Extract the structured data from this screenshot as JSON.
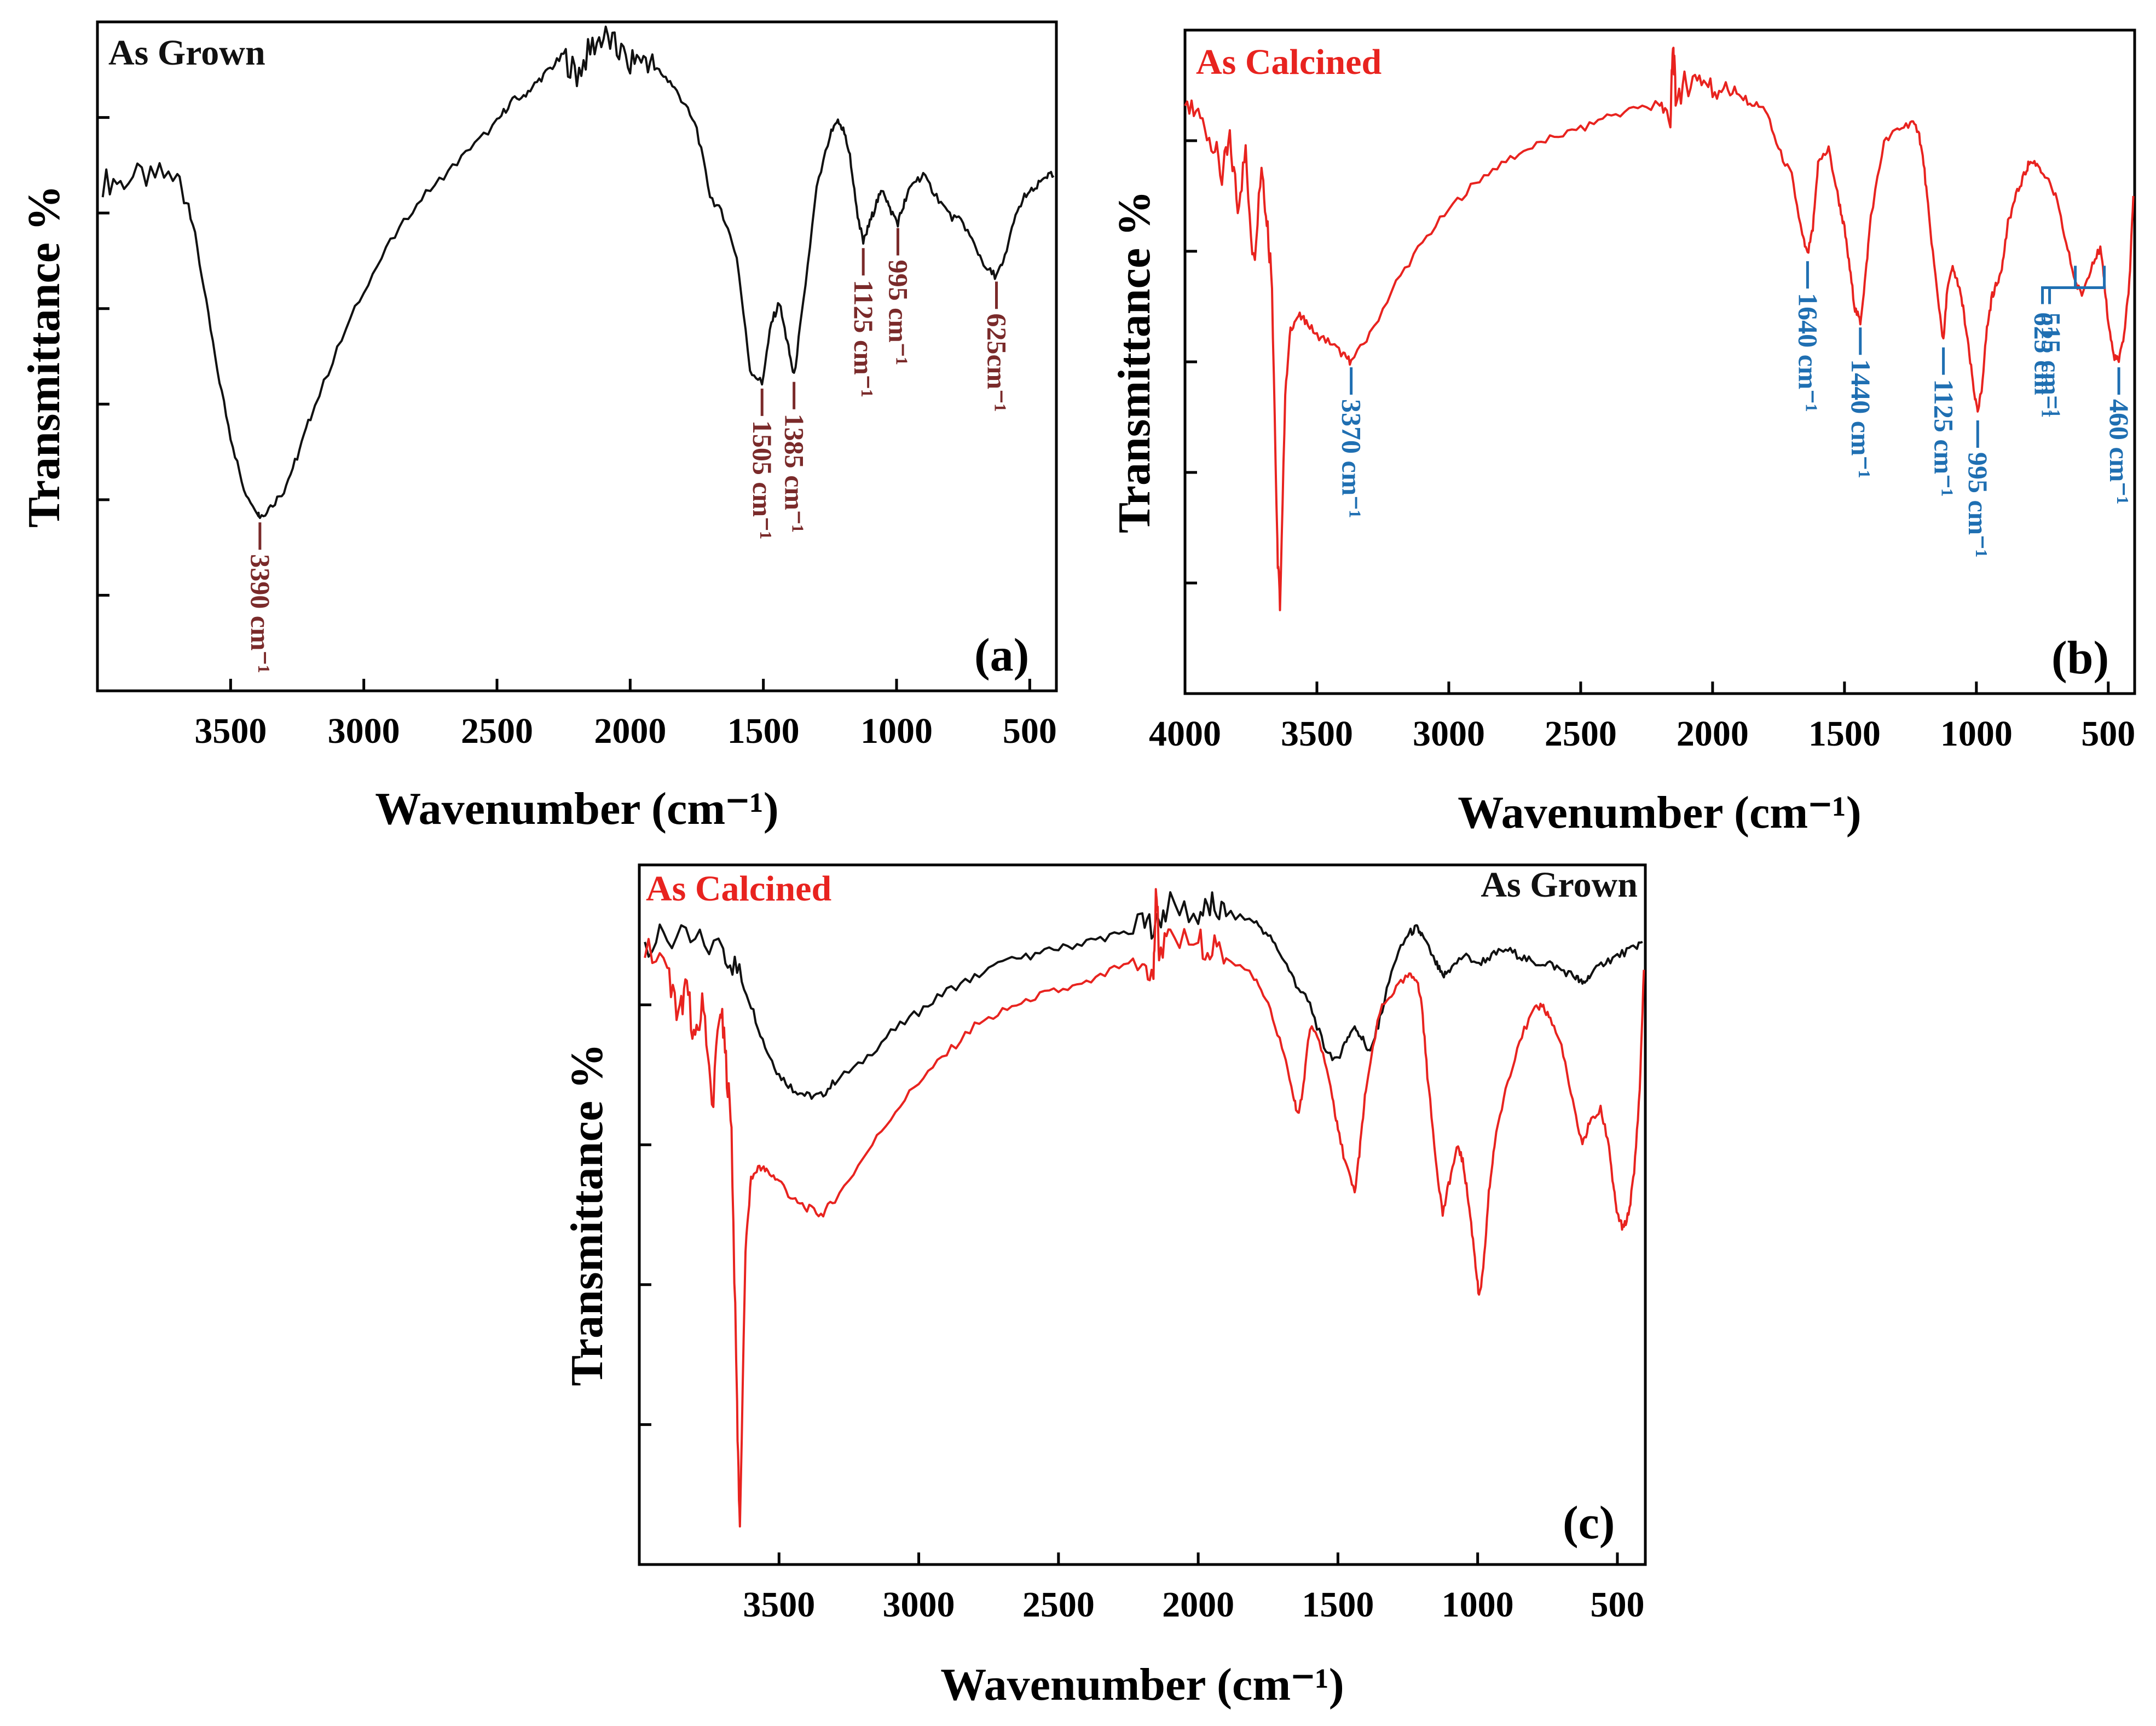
{
  "colors": {
    "as_grown": "#111111",
    "as_calcined": "#e8231f",
    "peak_label_a": "#7a2a2a",
    "peak_label_b": "#1f6fb2"
  },
  "chart_data": [
    {
      "id": "a",
      "type": "line",
      "panel_label": "(a)",
      "corner_label": "As Grown",
      "xlabel": "Wavenumber (cm⁻¹)",
      "ylabel": "Transmittance %",
      "xlim": [
        4000,
        400
      ],
      "ylim": [
        0,
        100
      ],
      "xticks": [
        3500,
        3000,
        2500,
        2000,
        1500,
        1000,
        500
      ],
      "y_tick_count": 6,
      "series": [
        {
          "name": "As Grown",
          "color_key": "as_grown",
          "x": [
            3980,
            3900,
            3800,
            3700,
            3650,
            3600,
            3550,
            3500,
            3450,
            3400,
            3390,
            3350,
            3300,
            3250,
            3200,
            3100,
            3000,
            2900,
            2800,
            2700,
            2600,
            2500,
            2450,
            2400,
            2350,
            2300,
            2250,
            2200,
            2150,
            2100,
            2050,
            2000,
            1950,
            1900,
            1850,
            1800,
            1750,
            1700,
            1650,
            1600,
            1550,
            1505,
            1470,
            1440,
            1410,
            1385,
            1350,
            1300,
            1250,
            1220,
            1200,
            1175,
            1150,
            1125,
            1100,
            1075,
            1050,
            1025,
            995,
            970,
            940,
            900,
            850,
            800,
            750,
            700,
            660,
            625,
            600,
            560,
            520,
            480,
            440,
            410
          ],
          "y": [
            76,
            76.5,
            77,
            77,
            72,
            60,
            48,
            38,
            30,
            27,
            26,
            27.5,
            30,
            35,
            41,
            51,
            60,
            67,
            73,
            77,
            81,
            85,
            88,
            89,
            91,
            93,
            95,
            92,
            96,
            98,
            96,
            94,
            95,
            93,
            91,
            88,
            84,
            74,
            71,
            65,
            48,
            46,
            55,
            58,
            52,
            47,
            58,
            75,
            83,
            85,
            84,
            80,
            72,
            67,
            70,
            73,
            75,
            72,
            70,
            73,
            76,
            77,
            74,
            71,
            70,
            66,
            63,
            62,
            64,
            70,
            74,
            75,
            77,
            77
          ]
        }
      ],
      "peaks": [
        {
          "text": "3390 cm⁻¹",
          "x": 3390,
          "orient": "down"
        },
        {
          "text": "1505 cm⁻¹",
          "x": 1505,
          "orient": "down"
        },
        {
          "text": "1385 cm⁻¹",
          "x": 1385,
          "orient": "down"
        },
        {
          "text": "1125 cm⁻¹",
          "x": 1125,
          "orient": "down"
        },
        {
          "text": "995 cm⁻¹",
          "x": 995,
          "orient": "down"
        },
        {
          "text": "625cm⁻¹",
          "x": 625,
          "orient": "down"
        }
      ]
    },
    {
      "id": "b",
      "type": "line",
      "panel_label": "(b)",
      "corner_label": "As Calcined",
      "xlabel": "Wavenumber (cm⁻¹)",
      "ylabel": "Transmittance %",
      "xlim": [
        4000,
        400
      ],
      "ylim": [
        0,
        100
      ],
      "xticks": [
        4000,
        3500,
        3000,
        2500,
        2000,
        1500,
        1000,
        500
      ],
      "y_tick_count": 5,
      "series": [
        {
          "name": "As Calcined",
          "color_key": "as_calcined",
          "x": [
            4000,
            3950,
            3900,
            3860,
            3830,
            3800,
            3770,
            3740,
            3710,
            3690,
            3670,
            3650,
            3640,
            3620,
            3600,
            3570,
            3540,
            3500,
            3450,
            3400,
            3370,
            3300,
            3200,
            3100,
            3000,
            2900,
            2800,
            2700,
            2600,
            2500,
            2400,
            2300,
            2200,
            2160,
            2150,
            2140,
            2100,
            2050,
            2000,
            1950,
            1900,
            1850,
            1800,
            1750,
            1700,
            1660,
            1640,
            1620,
            1600,
            1560,
            1520,
            1500,
            1480,
            1460,
            1440,
            1420,
            1400,
            1350,
            1300,
            1250,
            1220,
            1200,
            1180,
            1150,
            1125,
            1110,
            1090,
            1070,
            1050,
            1030,
            1010,
            995,
            980,
            960,
            940,
            920,
            900,
            880,
            850,
            820,
            800,
            770,
            740,
            700,
            660,
            625,
            600,
            560,
            530,
            515,
            500,
            480,
            460,
            440,
            420,
            405
          ],
          "y": [
            88,
            87,
            84,
            78,
            83,
            74,
            81,
            65,
            80,
            72,
            62,
            22,
            13,
            45,
            55,
            57,
            56,
            54,
            53,
            51,
            50,
            54,
            62,
            68,
            73,
            77,
            80,
            82,
            84,
            85,
            87,
            88,
            89,
            86,
            98,
            90,
            92,
            93,
            91,
            92,
            90,
            89,
            88,
            82,
            78,
            69,
            66,
            70,
            80,
            82,
            74,
            70,
            64,
            58,
            56,
            63,
            72,
            83,
            85,
            86,
            85,
            80,
            72,
            61,
            53,
            61,
            64,
            62,
            58,
            52,
            46,
            42,
            46,
            55,
            60,
            62,
            65,
            71,
            75,
            78,
            80,
            80,
            78,
            75,
            68,
            62,
            60,
            65,
            67,
            62,
            56,
            51,
            50,
            54,
            62,
            75
          ]
        }
      ],
      "peaks": [
        {
          "text": "3370 cm⁻¹",
          "x": 3370,
          "orient": "down"
        },
        {
          "text": "1640 cm⁻¹",
          "x": 1640,
          "orient": "down"
        },
        {
          "text": "1440 cm⁻¹",
          "x": 1440,
          "orient": "down"
        },
        {
          "text": "1125 cm⁻¹",
          "x": 1125,
          "orient": "down"
        },
        {
          "text": "995 cm⁻¹",
          "x": 995,
          "orient": "down"
        },
        {
          "text": "625 cm⁻¹",
          "x": 625,
          "orient": "bracket"
        },
        {
          "text": "515 cm⁻¹",
          "x": 515,
          "orient": "bracket"
        },
        {
          "text": "460 cm⁻¹",
          "x": 460,
          "orient": "down"
        }
      ]
    },
    {
      "id": "c",
      "type": "line",
      "panel_label": "(c)",
      "corner_label_left": "As Calcined",
      "corner_label_right": "As Grown",
      "xlabel": "Wavenumber (cm⁻¹)",
      "ylabel": "Transmittance %",
      "xlim": [
        4000,
        400
      ],
      "ylim": [
        0,
        100
      ],
      "xticks": [
        3500,
        3000,
        2500,
        2000,
        1500,
        1000,
        500
      ],
      "y_tick_count": 4,
      "series": [
        {
          "name": "As Grown",
          "color_key": "as_grown",
          "x": [
            3980,
            3900,
            3800,
            3700,
            3650,
            3600,
            3550,
            3500,
            3450,
            3400,
            3350,
            3300,
            3200,
            3100,
            3000,
            2900,
            2800,
            2700,
            2600,
            2500,
            2400,
            2300,
            2200,
            2150,
            2100,
            2000,
            1950,
            1900,
            1800,
            1750,
            1700,
            1650,
            1600,
            1550,
            1505,
            1470,
            1440,
            1410,
            1385,
            1350,
            1300,
            1250,
            1220,
            1200,
            1150,
            1125,
            1100,
            1050,
            995,
            950,
            900,
            850,
            800,
            750,
            700,
            650,
            625,
            600,
            550,
            500,
            450,
            410
          ],
          "y": [
            89,
            89.5,
            89,
            88,
            85,
            80,
            74,
            70,
            68,
            67,
            67,
            69,
            72,
            76,
            79,
            82,
            84,
            86,
            87,
            88,
            89,
            90,
            91,
            92,
            94,
            93,
            94,
            93,
            92,
            90,
            87,
            83,
            80,
            74,
            72,
            75,
            77,
            75,
            73,
            78,
            86,
            90,
            91,
            90,
            86,
            84,
            85,
            87,
            86,
            87,
            88,
            87,
            86,
            86,
            85,
            84,
            83,
            84,
            86,
            87,
            88,
            89
          ]
        },
        {
          "name": "As Calcined",
          "color_key": "as_calcined",
          "x": [
            3980,
            3900,
            3860,
            3830,
            3800,
            3770,
            3740,
            3710,
            3690,
            3670,
            3650,
            3640,
            3620,
            3600,
            3570,
            3540,
            3500,
            3450,
            3400,
            3350,
            3300,
            3200,
            3100,
            3000,
            2900,
            2800,
            2700,
            2600,
            2500,
            2400,
            2300,
            2200,
            2160,
            2150,
            2140,
            2100,
            2000,
            1950,
            1900,
            1800,
            1750,
            1700,
            1660,
            1640,
            1620,
            1600,
            1560,
            1520,
            1500,
            1470,
            1440,
            1420,
            1400,
            1350,
            1300,
            1250,
            1220,
            1200,
            1180,
            1150,
            1125,
            1100,
            1070,
            1050,
            1030,
            1010,
            995,
            980,
            960,
            940,
            900,
            850,
            800,
            770,
            740,
            700,
            660,
            625,
            600,
            560,
            530,
            515,
            500,
            480,
            460,
            440,
            420,
            405
          ],
          "y": [
            88,
            85,
            78,
            83,
            74,
            81,
            65,
            80,
            72,
            62,
            22,
            5,
            45,
            55,
            57,
            56,
            55,
            52,
            51,
            50,
            52,
            58,
            64,
            69,
            73,
            77,
            79,
            81,
            82,
            83,
            85,
            86,
            84,
            97,
            88,
            89,
            89,
            88,
            87,
            84,
            80,
            74,
            67,
            64,
            70,
            77,
            74,
            67,
            62,
            57,
            53,
            60,
            68,
            79,
            82,
            84,
            84,
            80,
            70,
            58,
            50,
            55,
            60,
            57,
            51,
            44,
            38,
            42,
            53,
            60,
            68,
            75,
            79,
            80,
            78,
            74,
            66,
            60,
            63,
            65,
            60,
            54,
            50,
            48,
            50,
            56,
            68,
            85
          ]
        }
      ]
    }
  ]
}
